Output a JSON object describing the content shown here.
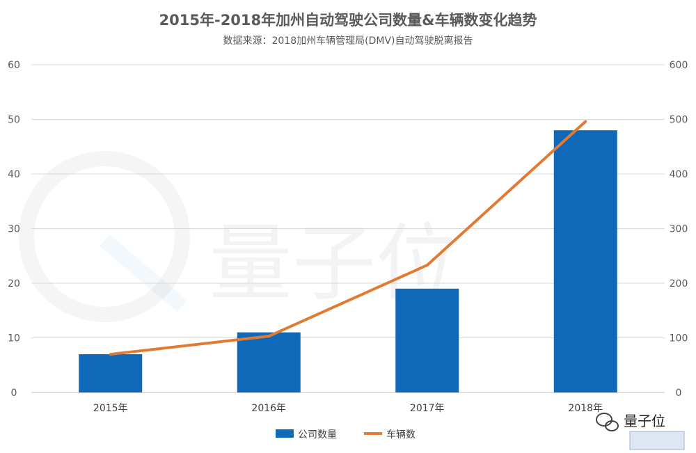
{
  "chart_data": {
    "type": "bar+line",
    "title": "2015年-2018年加州自动驾驶公司数量&车辆数变化趋势",
    "subtitle": "数据来源：2018加州车辆管理局(DMV)自动驾驶脱离报告",
    "categories": [
      "2015年",
      "2016年",
      "2017年",
      "2018年"
    ],
    "series": [
      {
        "name": "公司数量",
        "type": "bar",
        "axis": "left",
        "color": "#1068B8",
        "values": [
          7,
          11,
          19,
          48
        ]
      },
      {
        "name": "车辆数",
        "type": "line",
        "axis": "right",
        "color": "#E17B34",
        "values": [
          70,
          103,
          233,
          496
        ]
      }
    ],
    "y_left": {
      "min": 0,
      "max": 60,
      "ticks": [
        "0",
        "10",
        "20",
        "30",
        "40",
        "50",
        "60"
      ]
    },
    "y_right": {
      "min": 0,
      "max": 600,
      "ticks": [
        "0",
        "100",
        "200",
        "300",
        "400",
        "500",
        "600"
      ]
    },
    "grid": true,
    "legend_position": "bottom"
  },
  "watermark": {
    "text": "量子位",
    "logo_text": "量子位"
  }
}
